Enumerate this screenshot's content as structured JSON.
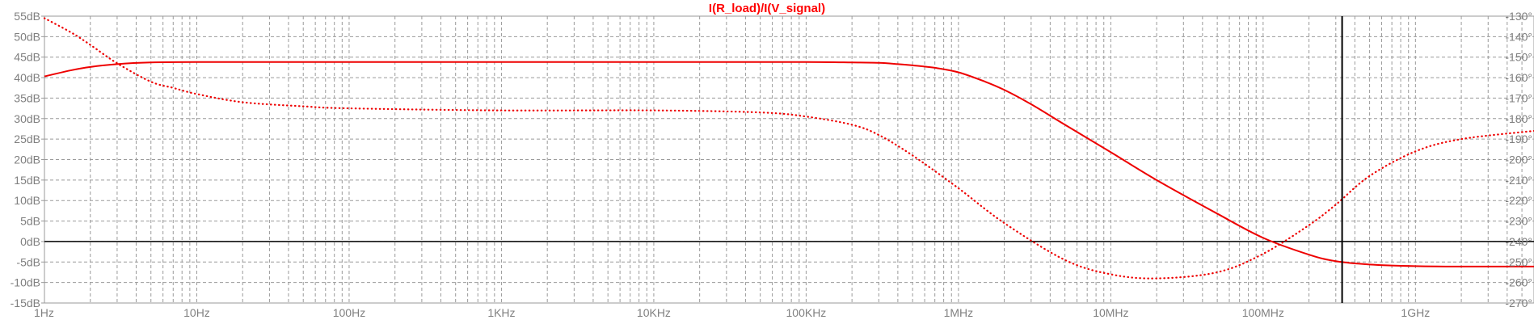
{
  "chart_data": {
    "type": "line",
    "title": "I(R_load)/I(V_signal)",
    "colors": {
      "trace": "#ee0000",
      "grid": "#9a9a9a",
      "axis_text": "#808080",
      "title": "#ff0000",
      "cursor": "#000000"
    },
    "x_axis": {
      "scale": "log",
      "range_hz": [
        1,
        6000000000
      ],
      "ticks": [
        {
          "value": 1,
          "label": "1Hz"
        },
        {
          "value": 10,
          "label": "10Hz"
        },
        {
          "value": 100,
          "label": "100Hz"
        },
        {
          "value": 1000,
          "label": "1KHz"
        },
        {
          "value": 10000,
          "label": "10KHz"
        },
        {
          "value": 100000,
          "label": "100KHz"
        },
        {
          "value": 1000000,
          "label": "1MHz"
        },
        {
          "value": 10000000,
          "label": "10MHz"
        },
        {
          "value": 100000000,
          "label": "100MHz"
        },
        {
          "value": 1000000000,
          "label": "1GHz"
        }
      ]
    },
    "y_left": {
      "unit": "dB",
      "range": [
        -15,
        55
      ],
      "ticks": [
        {
          "value": 55,
          "label": "55dB"
        },
        {
          "value": 50,
          "label": "50dB"
        },
        {
          "value": 45,
          "label": "45dB"
        },
        {
          "value": 40,
          "label": "40dB"
        },
        {
          "value": 35,
          "label": "35dB"
        },
        {
          "value": 30,
          "label": "30dB"
        },
        {
          "value": 25,
          "label": "25dB"
        },
        {
          "value": 20,
          "label": "20dB"
        },
        {
          "value": 15,
          "label": "15dB"
        },
        {
          "value": 10,
          "label": "10dB"
        },
        {
          "value": 5,
          "label": "5dB"
        },
        {
          "value": 0,
          "label": "0dB"
        },
        {
          "value": -5,
          "label": "-5dB"
        },
        {
          "value": -10,
          "label": "-10dB"
        },
        {
          "value": -15,
          "label": "-15dB"
        }
      ]
    },
    "y_right": {
      "unit": "degrees",
      "range": [
        -270,
        -130
      ],
      "ticks": [
        {
          "value": -130,
          "label": "-130°"
        },
        {
          "value": -140,
          "label": "-140°"
        },
        {
          "value": -150,
          "label": "-150°"
        },
        {
          "value": -160,
          "label": "-160°"
        },
        {
          "value": -170,
          "label": "-170°"
        },
        {
          "value": -180,
          "label": "-180°"
        },
        {
          "value": -190,
          "label": "-190°"
        },
        {
          "value": -200,
          "label": "-200°"
        },
        {
          "value": -210,
          "label": "-210°"
        },
        {
          "value": -220,
          "label": "-220°"
        },
        {
          "value": -230,
          "label": "-230°"
        },
        {
          "value": -240,
          "label": "-240°"
        },
        {
          "value": -250,
          "label": "-250°"
        },
        {
          "value": -260,
          "label": "-260°"
        },
        {
          "value": -270,
          "label": "-270°"
        }
      ]
    },
    "reference_line_db": 0,
    "cursor_x_hz": 330000000,
    "grid": true,
    "series": [
      {
        "axis": "left",
        "style": "solid",
        "x": [
          1,
          1.5,
          2,
          3,
          5,
          10,
          100,
          1000,
          10000,
          100000,
          200000,
          300000,
          400000,
          500000,
          700000,
          1000000,
          1500000,
          2000000,
          3000000,
          5000000,
          10000000,
          20000000,
          50000000,
          100000000,
          200000000,
          300000000,
          500000000,
          1000000000,
          2000000000,
          6000000000
        ],
        "values": [
          40.3,
          41.8,
          42.6,
          43.3,
          43.7,
          43.8,
          43.8,
          43.8,
          43.8,
          43.8,
          43.7,
          43.6,
          43.3,
          43.0,
          42.4,
          41.3,
          39.0,
          37.0,
          33.5,
          28.5,
          21.8,
          15.0,
          6.8,
          0.9,
          -3.2,
          -4.8,
          -5.6,
          -6.0,
          -6.1,
          -6.1
        ]
      },
      {
        "axis": "right",
        "style": "dotted",
        "x": [
          1,
          1.5,
          2,
          3,
          5,
          7,
          10,
          20,
          50,
          100,
          1000,
          10000,
          50000,
          100000,
          200000,
          300000,
          500000,
          1000000,
          2000000,
          5000000,
          10000000,
          20000000,
          50000000,
          100000000,
          200000000,
          300000000,
          500000000,
          1000000000,
          2000000000,
          6000000000
        ],
        "values": [
          -131,
          -138,
          -144,
          -153,
          -162,
          -165,
          -168,
          -172,
          -174,
          -175,
          -176,
          -176,
          -177,
          -179,
          -183,
          -188,
          -198,
          -214,
          -231,
          -249,
          -256,
          -258,
          -255,
          -246,
          -232,
          -222,
          -208,
          -196,
          -190,
          -186
        ]
      }
    ]
  }
}
